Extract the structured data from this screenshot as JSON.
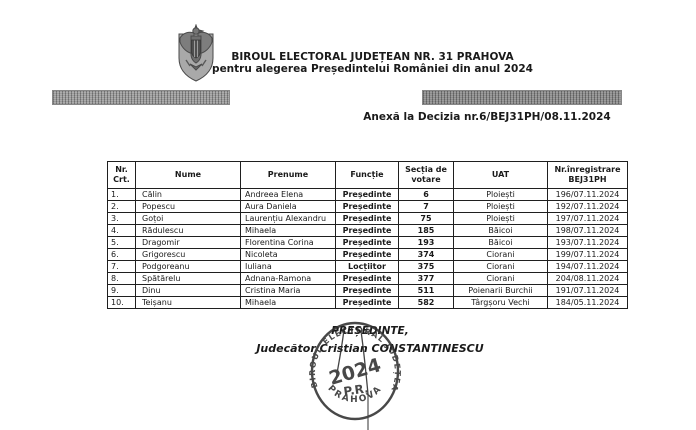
{
  "header": {
    "title_line1": "BIROUL ELECTORAL JUDEȚEAN NR. 31 PRAHOVA",
    "title_line2": "pentru alegerea Președintelui României din anul 2024",
    "annex_line": "Anexă la Decizia nr.6/BEJ31PH/08.11.2024"
  },
  "table": {
    "columns": [
      "Nr. Crt.",
      "Nume",
      "Prenume",
      "Funcție",
      "Secția de votare",
      "UAT",
      "Nr.înregistrare BEJ31PH"
    ],
    "rows": [
      [
        "1.",
        "Călin",
        "Andreea Elena",
        "Președinte",
        "6",
        "Ploiești",
        "196/07.11.2024"
      ],
      [
        "2.",
        "Popescu",
        "Aura Daniela",
        "Președinte",
        "7",
        "Ploiești",
        "192/07.11.2024"
      ],
      [
        "3.",
        "Goțoi",
        "Laurențiu Alexandru",
        "Președinte",
        "75",
        "Ploiești",
        "197/07.11.2024"
      ],
      [
        "4.",
        "Rădulescu",
        "Mihaela",
        "Președinte",
        "185",
        "Băicoi",
        "198/07.11.2024"
      ],
      [
        "5.",
        "Dragomir",
        "Florentina Corina",
        "Președinte",
        "193",
        "Băicoi",
        "193/07.11.2024"
      ],
      [
        "6.",
        "Grigorescu",
        "Nicoleta",
        "Președinte",
        "374",
        "Ciorani",
        "199/07.11.2024"
      ],
      [
        "7.",
        "Podgoreanu",
        "Iuliana",
        "Locțiitor",
        "375",
        "Ciorani",
        "194/07.11.2024"
      ],
      [
        "8.",
        "Spătărelu",
        "Adnana-Ramona",
        "Președinte",
        "377",
        "Ciorani",
        "204/08.11.2024"
      ],
      [
        "9.",
        "Dinu",
        "Cristina Maria",
        "Președinte",
        "511",
        "Poienarii Burchii",
        "191/07.11.2024"
      ],
      [
        "10.",
        "Teișanu",
        "Mihaela",
        "Președinte",
        "582",
        "Târgșoru Vechi",
        "184/05.11.2024"
      ]
    ]
  },
  "signature": {
    "role": "PREȘEDINTE,",
    "name": "Judecător Cristian CONSTANTINESCU"
  },
  "stamp": {
    "ring_text": "BIROUL ELECTORAL JUDEȚEAN",
    "ring_bottom_text": "PRAHOVA",
    "center_year": "2024",
    "center_initials": "P.R."
  },
  "colors": {
    "ink": "#1a1a1a",
    "redaction_left": "#a0a0a0",
    "redaction_right": "#8d8d8d",
    "stamp_ink": "#2f2f2f"
  }
}
